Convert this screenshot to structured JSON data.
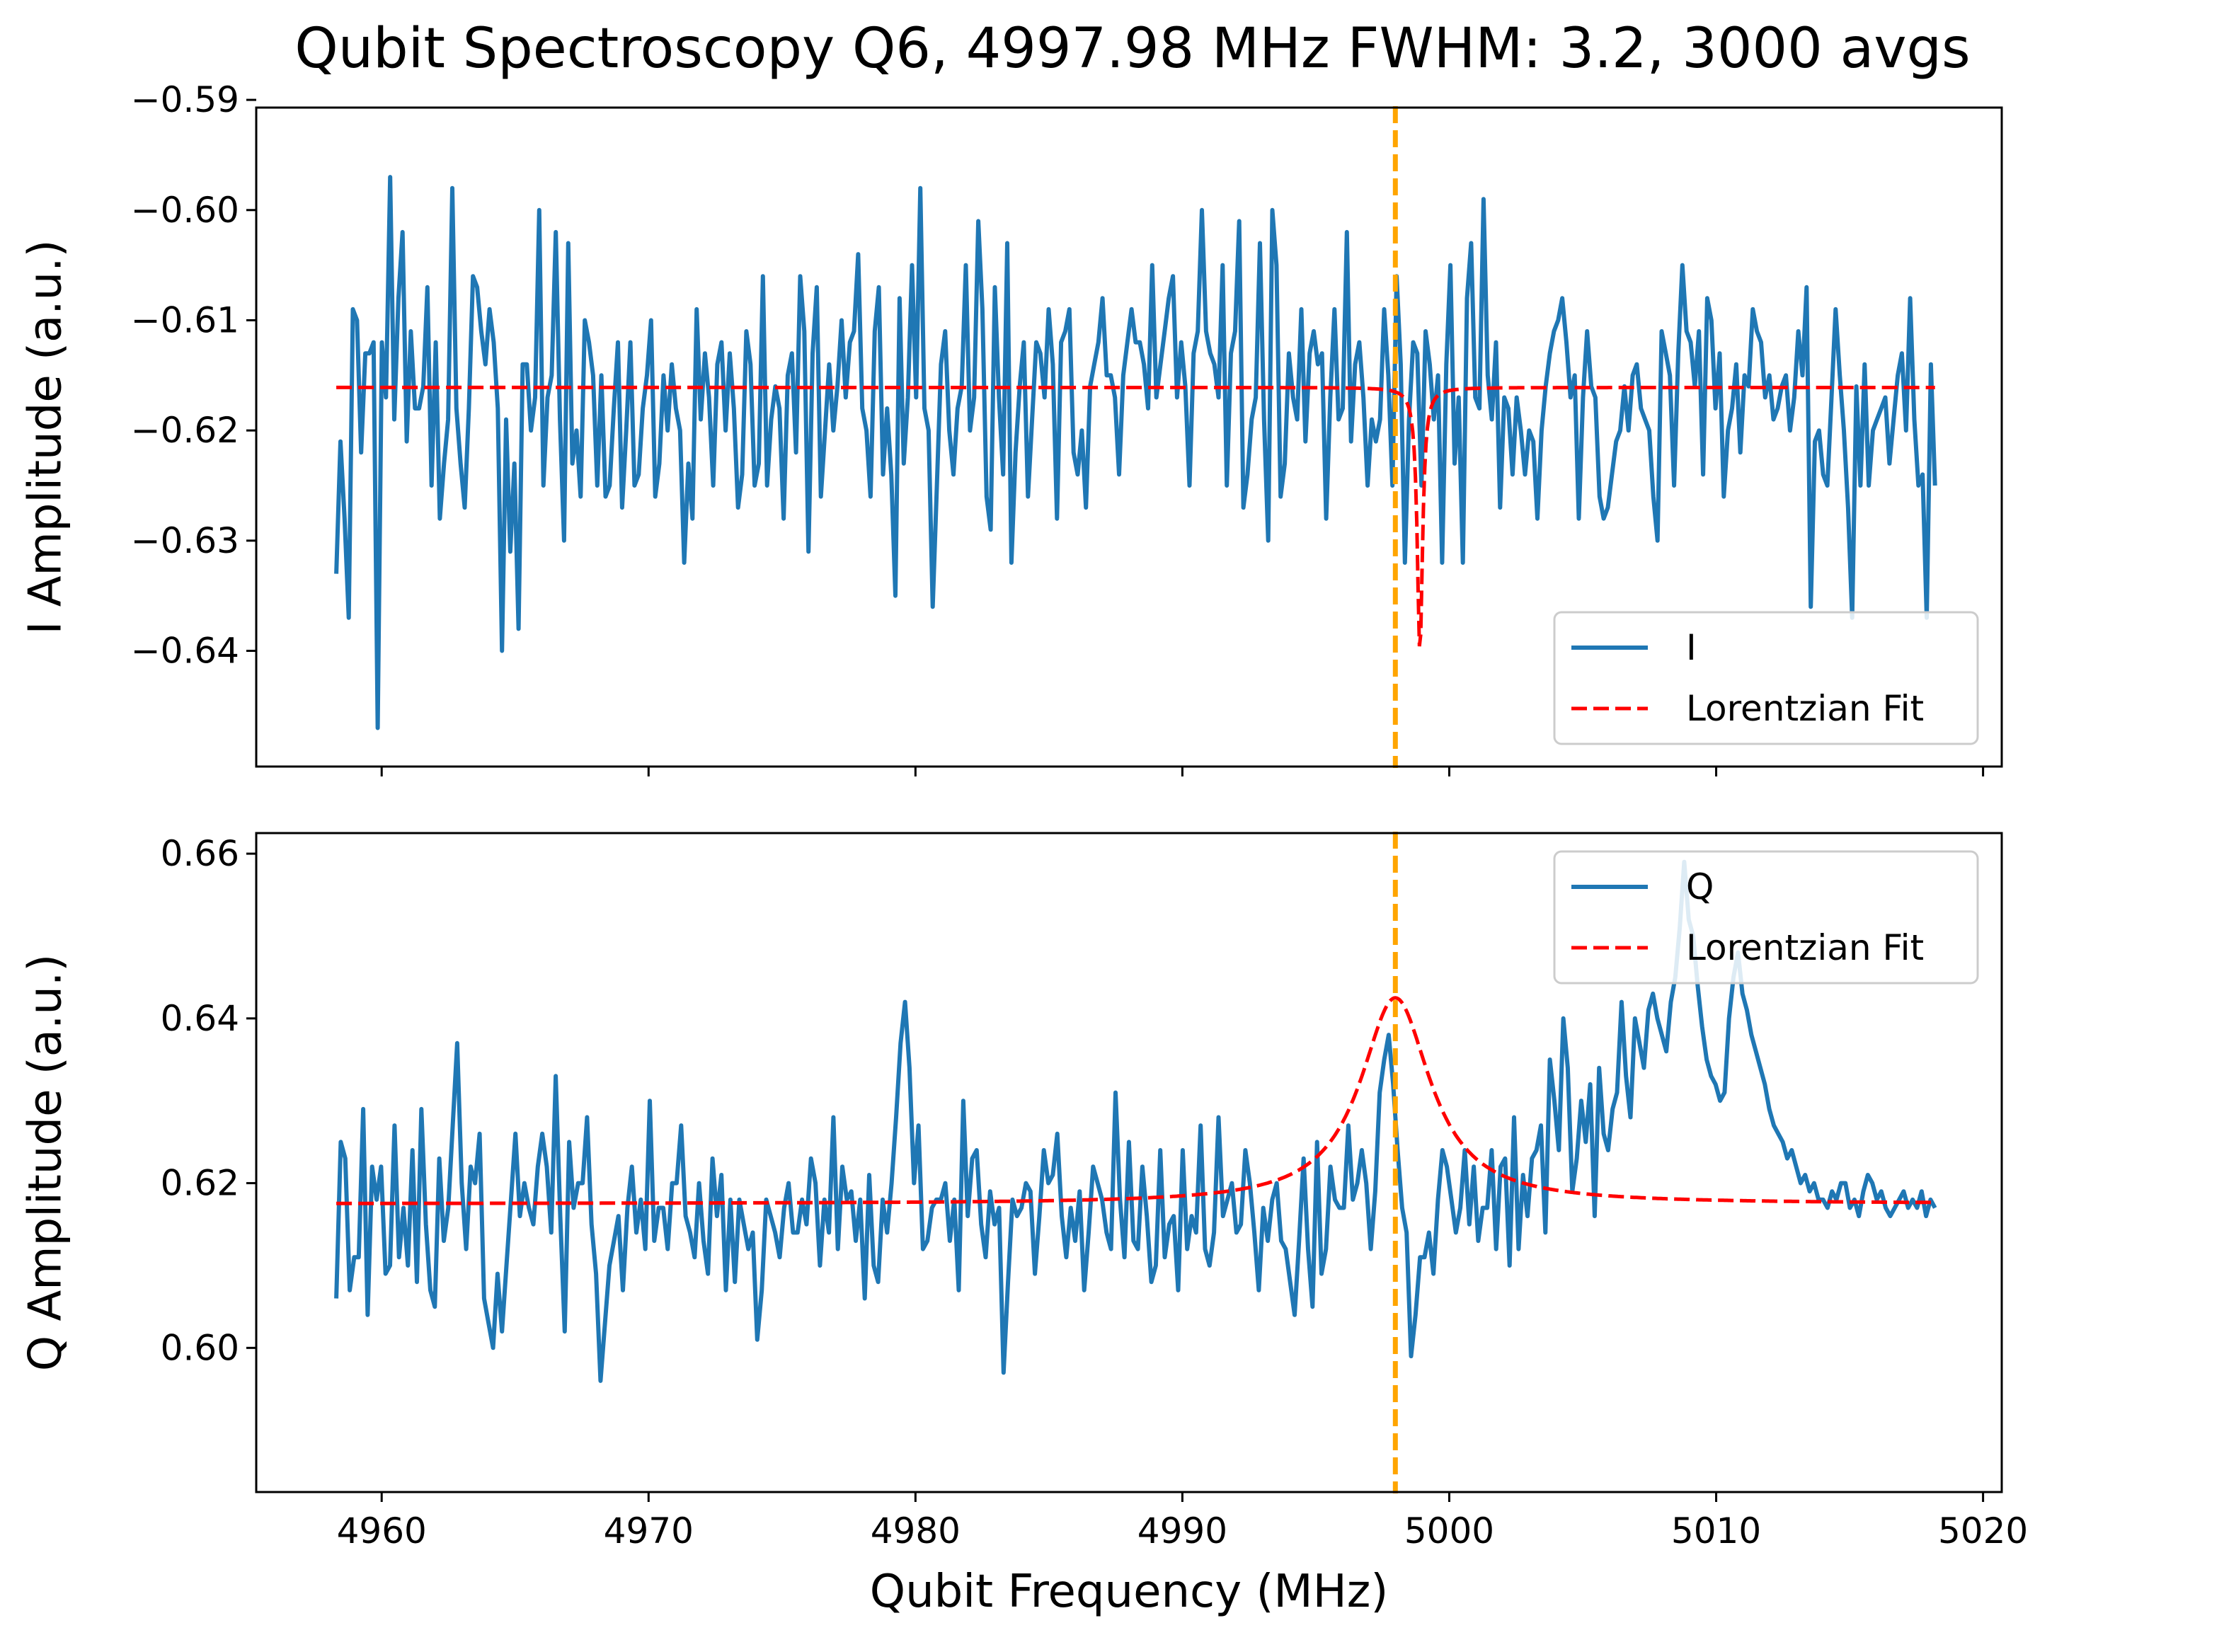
{
  "title": "Qubit Spectroscopy Q6, 4997.98 MHz FWHM: 3.2, 3000 avgs",
  "colors": {
    "data": "#1f77b4",
    "fit": "#ff0000",
    "marker": "#ffa500",
    "axis": "#000000"
  },
  "chart_data": [
    {
      "type": "line",
      "ylabel": "I Amplitude (a.u.)",
      "xlim": [
        4955.3,
        5020.7
      ],
      "ylim": [
        -0.6505,
        -0.5907
      ],
      "yticks": [
        -0.64,
        -0.63,
        -0.62,
        -0.61,
        -0.6,
        -0.59
      ],
      "ytick_labels": [
        "−0.64",
        "−0.63",
        "−0.62",
        "−0.61",
        "−0.60",
        "−0.59"
      ],
      "xticks": [
        4960,
        4970,
        4980,
        4990,
        5000,
        5010,
        5020
      ],
      "xtick_labels_shown": false,
      "grid": false,
      "legend": {
        "position": "lower-right",
        "entries": [
          "I",
          "Lorentzian Fit"
        ]
      },
      "vline_x": 4997.98,
      "series": [
        {
          "name": "I",
          "style": "solid",
          "x_range": [
            4958.3,
            5018.2
          ],
          "values": [
            -0.633,
            -0.621,
            -0.628,
            -0.637,
            -0.609,
            -0.61,
            -0.622,
            -0.613,
            -0.613,
            -0.612,
            -0.647,
            -0.612,
            -0.617,
            -0.597,
            -0.619,
            -0.608,
            -0.602,
            -0.621,
            -0.611,
            -0.618,
            -0.618,
            -0.616,
            -0.607,
            -0.625,
            -0.612,
            -0.628,
            -0.623,
            -0.619,
            -0.598,
            -0.618,
            -0.623,
            -0.627,
            -0.618,
            -0.606,
            -0.607,
            -0.611,
            -0.614,
            -0.609,
            -0.612,
            -0.618,
            -0.64,
            -0.619,
            -0.631,
            -0.623,
            -0.638,
            -0.614,
            -0.614,
            -0.62,
            -0.617,
            -0.6,
            -0.625,
            -0.617,
            -0.615,
            -0.602,
            -0.619,
            -0.63,
            -0.603,
            -0.623,
            -0.62,
            -0.626,
            -0.61,
            -0.612,
            -0.615,
            -0.625,
            -0.615,
            -0.626,
            -0.625,
            -0.618,
            -0.612,
            -0.627,
            -0.62,
            -0.612,
            -0.625,
            -0.624,
            -0.618,
            -0.615,
            -0.61,
            -0.626,
            -0.623,
            -0.615,
            -0.62,
            -0.614,
            -0.618,
            -0.62,
            -0.632,
            -0.623,
            -0.628,
            -0.609,
            -0.619,
            -0.613,
            -0.617,
            -0.625,
            -0.614,
            -0.612,
            -0.62,
            -0.613,
            -0.618,
            -0.627,
            -0.624,
            -0.611,
            -0.614,
            -0.625,
            -0.623,
            -0.606,
            -0.625,
            -0.619,
            -0.616,
            -0.618,
            -0.628,
            -0.615,
            -0.613,
            -0.622,
            -0.606,
            -0.611,
            -0.631,
            -0.613,
            -0.607,
            -0.626,
            -0.62,
            -0.614,
            -0.62,
            -0.616,
            -0.61,
            -0.617,
            -0.612,
            -0.611,
            -0.604,
            -0.618,
            -0.62,
            -0.626,
            -0.611,
            -0.607,
            -0.624,
            -0.618,
            -0.624,
            -0.635,
            -0.608,
            -0.623,
            -0.617,
            -0.605,
            -0.617,
            -0.598,
            -0.618,
            -0.62,
            -0.636,
            -0.625,
            -0.614,
            -0.611,
            -0.62,
            -0.624,
            -0.618,
            -0.616,
            -0.605,
            -0.62,
            -0.617,
            -0.601,
            -0.609,
            -0.626,
            -0.629,
            -0.607,
            -0.617,
            -0.624,
            -0.603,
            -0.632,
            -0.622,
            -0.616,
            -0.612,
            -0.626,
            -0.619,
            -0.612,
            -0.613,
            -0.617,
            -0.609,
            -0.614,
            -0.628,
            -0.612,
            -0.611,
            -0.609,
            -0.622,
            -0.624,
            -0.62,
            -0.627,
            -0.616,
            -0.614,
            -0.612,
            -0.608,
            -0.615,
            -0.615,
            -0.617,
            -0.624,
            -0.615,
            -0.612,
            -0.609,
            -0.612,
            -0.612,
            -0.614,
            -0.618,
            -0.605,
            -0.617,
            -0.614,
            -0.611,
            -0.608,
            -0.606,
            -0.617,
            -0.612,
            -0.616,
            -0.625,
            -0.613,
            -0.611,
            -0.6,
            -0.611,
            -0.613,
            -0.614,
            -0.617,
            -0.605,
            -0.625,
            -0.613,
            -0.611,
            -0.601,
            -0.627,
            -0.624,
            -0.619,
            -0.617,
            -0.603,
            -0.619,
            -0.63,
            -0.6,
            -0.605,
            -0.626,
            -0.623,
            -0.613,
            -0.617,
            -0.619,
            -0.609,
            -0.621,
            -0.613,
            -0.611,
            -0.614,
            -0.613,
            -0.628,
            -0.617,
            -0.609,
            -0.619,
            -0.618,
            -0.602,
            -0.621,
            -0.614,
            -0.612,
            -0.617,
            -0.625,
            -0.619,
            -0.621,
            -0.619,
            -0.609,
            -0.615,
            -0.625,
            -0.606,
            -0.614,
            -0.632,
            -0.619,
            -0.612,
            -0.613,
            -0.625,
            -0.611,
            -0.614,
            -0.619,
            -0.615,
            -0.632,
            -0.614,
            -0.605,
            -0.623,
            -0.617,
            -0.632,
            -0.608,
            -0.603,
            -0.617,
            -0.618,
            -0.599,
            -0.615,
            -0.619,
            -0.612,
            -0.627,
            -0.617,
            -0.618,
            -0.624,
            -0.617,
            -0.62,
            -0.624,
            -0.62,
            -0.621,
            -0.628,
            -0.62,
            -0.616,
            -0.613,
            -0.611,
            -0.61,
            -0.608,
            -0.612,
            -0.617,
            -0.615,
            -0.628,
            -0.617,
            -0.611,
            -0.616,
            -0.617,
            -0.626,
            -0.628,
            -0.627,
            -0.624,
            -0.621,
            -0.62,
            -0.616,
            -0.62,
            -0.615,
            -0.614,
            -0.618,
            -0.619,
            -0.62,
            -0.626,
            -0.63,
            -0.611,
            -0.613,
            -0.615,
            -0.625,
            -0.613,
            -0.605,
            -0.611,
            -0.612,
            -0.616,
            -0.611,
            -0.624,
            -0.608,
            -0.61,
            -0.618,
            -0.613,
            -0.626,
            -0.62,
            -0.618,
            -0.614,
            -0.622,
            -0.615,
            -0.616,
            -0.609,
            -0.611,
            -0.612,
            -0.617,
            -0.615,
            -0.619,
            -0.618,
            -0.616,
            -0.615,
            -0.62,
            -0.617,
            -0.611,
            -0.615,
            -0.607,
            -0.636,
            -0.621,
            -0.62,
            -0.624,
            -0.625,
            -0.617,
            -0.609,
            -0.615,
            -0.62,
            -0.627,
            -0.637,
            -0.616,
            -0.625,
            -0.614,
            -0.625,
            -0.62,
            -0.619,
            -0.618,
            -0.617,
            -0.623,
            -0.619,
            -0.615,
            -0.613,
            -0.62,
            -0.608,
            -0.619,
            -0.625,
            -0.624,
            -0.637,
            -0.614,
            -0.625
          ]
        },
        {
          "name": "Lorentzian Fit",
          "style": "dashed",
          "x_range": [
            4958.3,
            5018.2
          ],
          "baseline": -0.6161,
          "dip_center": 4998.9,
          "dip_depth": -0.024,
          "dip_hwhm": 0.12
        }
      ]
    },
    {
      "type": "line",
      "ylabel": "Q Amplitude (a.u.)",
      "xlabel": "Qubit Frequency (MHz)",
      "xlim": [
        4955.3,
        5020.7
      ],
      "ylim": [
        0.5825,
        0.6625
      ],
      "yticks": [
        0.6,
        0.62,
        0.64,
        0.66
      ],
      "ytick_labels": [
        "0.60",
        "0.62",
        "0.64",
        "0.66"
      ],
      "xticks": [
        4960,
        4970,
        4980,
        4990,
        5000,
        5010,
        5020
      ],
      "xtick_labels": [
        "4960",
        "4970",
        "4980",
        "4990",
        "5000",
        "5010",
        "5020"
      ],
      "grid": false,
      "legend": {
        "position": "top-right",
        "entries": [
          "Q",
          "Lorentzian Fit"
        ]
      },
      "vline_x": 4997.98,
      "series": [
        {
          "name": "Q",
          "style": "solid",
          "x_range": [
            4958.3,
            5018.2
          ],
          "values": [
            0.606,
            0.625,
            0.623,
            0.607,
            0.611,
            0.611,
            0.629,
            0.604,
            0.622,
            0.618,
            0.622,
            0.609,
            0.61,
            0.627,
            0.611,
            0.617,
            0.61,
            0.624,
            0.608,
            0.629,
            0.615,
            0.607,
            0.605,
            0.623,
            0.613,
            0.617,
            0.627,
            0.637,
            0.62,
            0.612,
            0.622,
            0.62,
            0.626,
            0.606,
            0.603,
            0.6,
            0.609,
            0.602,
            0.61,
            0.618,
            0.626,
            0.616,
            0.62,
            0.617,
            0.615,
            0.622,
            0.626,
            0.622,
            0.614,
            0.633,
            0.616,
            0.602,
            0.625,
            0.617,
            0.62,
            0.62,
            0.628,
            0.615,
            0.609,
            0.596,
            0.603,
            0.61,
            0.613,
            0.616,
            0.607,
            0.617,
            0.622,
            0.614,
            0.618,
            0.612,
            0.63,
            0.613,
            0.617,
            0.617,
            0.612,
            0.62,
            0.62,
            0.627,
            0.616,
            0.614,
            0.611,
            0.62,
            0.613,
            0.609,
            0.623,
            0.616,
            0.621,
            0.607,
            0.618,
            0.608,
            0.618,
            0.615,
            0.612,
            0.614,
            0.601,
            0.607,
            0.618,
            0.616,
            0.614,
            0.611,
            0.617,
            0.62,
            0.614,
            0.614,
            0.618,
            0.615,
            0.623,
            0.62,
            0.61,
            0.618,
            0.614,
            0.628,
            0.612,
            0.622,
            0.618,
            0.619,
            0.613,
            0.618,
            0.606,
            0.621,
            0.61,
            0.608,
            0.618,
            0.614,
            0.62,
            0.628,
            0.637,
            0.642,
            0.634,
            0.62,
            0.627,
            0.612,
            0.613,
            0.617,
            0.618,
            0.618,
            0.62,
            0.613,
            0.618,
            0.607,
            0.63,
            0.616,
            0.623,
            0.624,
            0.615,
            0.611,
            0.619,
            0.615,
            0.617,
            0.597,
            0.608,
            0.618,
            0.616,
            0.617,
            0.62,
            0.619,
            0.609,
            0.616,
            0.624,
            0.62,
            0.621,
            0.626,
            0.616,
            0.611,
            0.617,
            0.613,
            0.619,
            0.607,
            0.614,
            0.622,
            0.62,
            0.618,
            0.614,
            0.612,
            0.631,
            0.618,
            0.611,
            0.625,
            0.613,
            0.612,
            0.622,
            0.616,
            0.608,
            0.61,
            0.624,
            0.611,
            0.615,
            0.616,
            0.607,
            0.624,
            0.612,
            0.616,
            0.614,
            0.627,
            0.612,
            0.61,
            0.614,
            0.628,
            0.616,
            0.618,
            0.62,
            0.614,
            0.615,
            0.624,
            0.62,
            0.614,
            0.607,
            0.617,
            0.613,
            0.618,
            0.62,
            0.613,
            0.612,
            0.608,
            0.604,
            0.613,
            0.623,
            0.612,
            0.605,
            0.625,
            0.609,
            0.612,
            0.622,
            0.618,
            0.617,
            0.617,
            0.627,
            0.618,
            0.62,
            0.624,
            0.62,
            0.612,
            0.619,
            0.631,
            0.635,
            0.638,
            0.632,
            0.624,
            0.617,
            0.614,
            0.599,
            0.604,
            0.611,
            0.611,
            0.614,
            0.609,
            0.618,
            0.624,
            0.622,
            0.618,
            0.614,
            0.617,
            0.624,
            0.615,
            0.622,
            0.613,
            0.617,
            0.617,
            0.624,
            0.612,
            0.622,
            0.623,
            0.61,
            0.628,
            0.612,
            0.621,
            0.616,
            0.623,
            0.624,
            0.627,
            0.614,
            0.635,
            0.63,
            0.624,
            0.64,
            0.634,
            0.619,
            0.623,
            0.63,
            0.625,
            0.632,
            0.616,
            0.634,
            0.626,
            0.624,
            0.629,
            0.631,
            0.642,
            0.633,
            0.628,
            0.64,
            0.637,
            0.634,
            0.641,
            0.643,
            0.64,
            0.638,
            0.636,
            0.642,
            0.645,
            0.651,
            0.659,
            0.652,
            0.65,
            0.644,
            0.639,
            0.635,
            0.633,
            0.632,
            0.63,
            0.631,
            0.64,
            0.645,
            0.648,
            0.643,
            0.641,
            0.638,
            0.636,
            0.634,
            0.632,
            0.629,
            0.627,
            0.626,
            0.625,
            0.623,
            0.624,
            0.622,
            0.62,
            0.621,
            0.619,
            0.62,
            0.618,
            0.618,
            0.617,
            0.619,
            0.618,
            0.62,
            0.62,
            0.617,
            0.618,
            0.616,
            0.619,
            0.621,
            0.62,
            0.618,
            0.619,
            0.617,
            0.616,
            0.617,
            0.618,
            0.619,
            0.617,
            0.618,
            0.617,
            0.619,
            0.616,
            0.618,
            0.617
          ]
        },
        {
          "name": "Lorentzian Fit",
          "style": "dashed",
          "x_range": [
            4958.3,
            5018.2
          ],
          "baseline": 0.6175,
          "peak_center": 4997.98,
          "peak_height": 0.025,
          "fwhm": 3.2
        }
      ]
    }
  ]
}
